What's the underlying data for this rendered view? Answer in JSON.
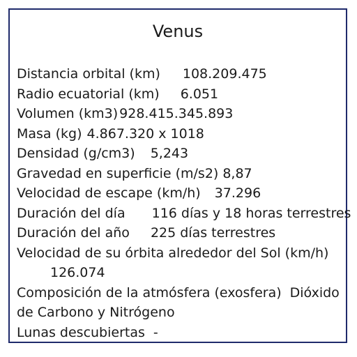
{
  "title": "Venus",
  "rows": [
    {
      "label": "Distancia orbital (km)",
      "value": "108.209.475"
    },
    {
      "label": "Radio ecuatorial (km)",
      "value": "6.051"
    },
    {
      "label": "Volumen (km3)",
      "value": "928.415.345.893"
    },
    {
      "label": "Masa (kg)",
      "value": "4.867.320 x 1018"
    },
    {
      "label": "Densidad (g/cm3)",
      "value": "5,243"
    },
    {
      "label": "Gravedad en superficie (m/s2)",
      "value": "8,87"
    },
    {
      "label": "Velocidad de escape (km/h)",
      "value": "37.296"
    },
    {
      "label": "Duración del día",
      "value": "116 días y 18 horas terrestres"
    },
    {
      "label": "Duración del año",
      "value": "225 días terrestres"
    },
    {
      "label": "Velocidad de su órbita alrededor del Sol (km/h)",
      "value": "126.074"
    },
    {
      "label": "Composición de la atmósfera (exosfera)",
      "value": "Dióxido de Carbono y Nitrógeno"
    },
    {
      "label": "Lunas descubiertas",
      "value": "-"
    }
  ]
}
